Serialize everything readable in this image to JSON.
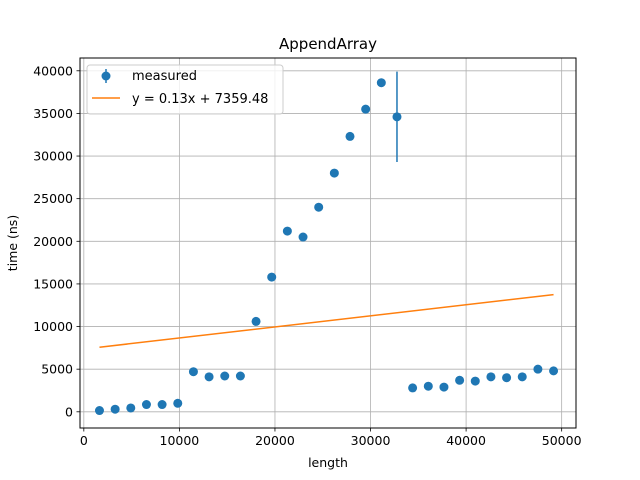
{
  "chart_data": {
    "type": "scatter",
    "title": "AppendArray",
    "xlabel": "length",
    "ylabel": "time (ns)",
    "xlim": [
      -400,
      51500
    ],
    "ylim": [
      -1900,
      41500
    ],
    "xticks": [
      0,
      10000,
      20000,
      30000,
      40000,
      50000
    ],
    "yticks": [
      0,
      5000,
      10000,
      15000,
      20000,
      25000,
      30000,
      35000,
      40000
    ],
    "grid": true,
    "legend_position": "top-left",
    "colors": {
      "measured": "#1f77b4",
      "fit": "#ff7f0e"
    },
    "series": [
      {
        "name": "measured",
        "kind": "points-with-errorbars",
        "x": [
          1638,
          3277,
          4915,
          6554,
          8192,
          9830,
          11469,
          13107,
          14746,
          16384,
          18022,
          19661,
          21299,
          22938,
          24576,
          26214,
          27853,
          29491,
          31130,
          32768,
          34406,
          36045,
          37683,
          39322,
          40960,
          42598,
          44237,
          45875,
          47514,
          49152
        ],
        "y": [
          150,
          300,
          450,
          850,
          850,
          1000,
          4700,
          4100,
          4200,
          4200,
          10600,
          15800,
          21200,
          20500,
          24000,
          28000,
          32300,
          35500,
          38600,
          34600,
          2800,
          3000,
          2900,
          3700,
          3600,
          4100,
          4000,
          4100,
          5000,
          4800
        ],
        "error": [
          0,
          0,
          0,
          0,
          0,
          0,
          0,
          0,
          0,
          0,
          0,
          0,
          0,
          0,
          0,
          0,
          0,
          0,
          0,
          5300,
          0,
          0,
          0,
          0,
          0,
          0,
          0,
          0,
          0,
          0
        ]
      },
      {
        "name": "y = 0.13x + 7359.48",
        "kind": "line",
        "slope": 0.13,
        "intercept": 7359.48,
        "x": [
          1638,
          49152
        ]
      }
    ]
  }
}
